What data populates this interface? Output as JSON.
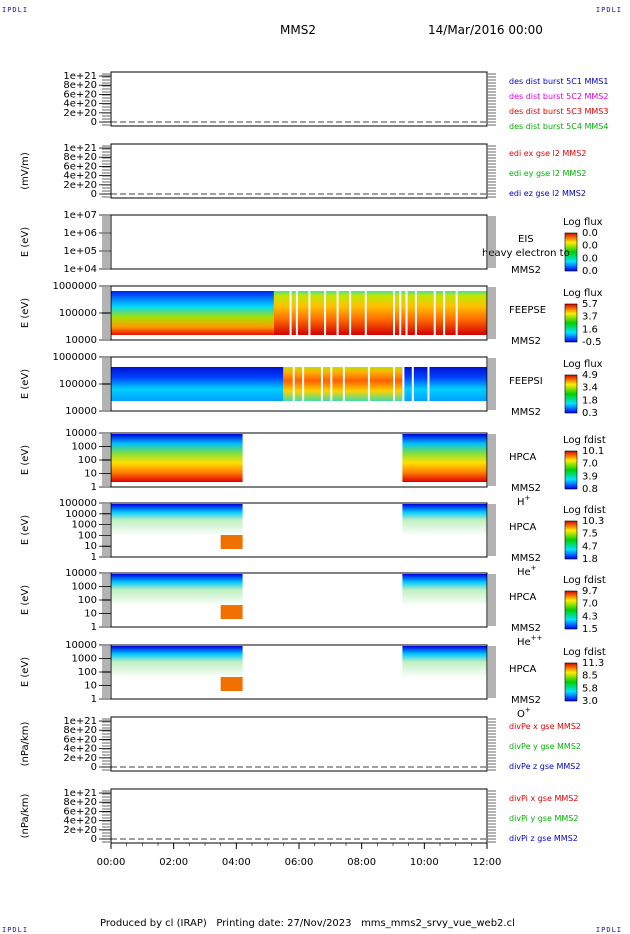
{
  "corners": {
    "tl": "IPDLI",
    "tr": "IPDLI",
    "bl": "IPDLI",
    "br": "IPDLI"
  },
  "header": {
    "spacecraft": "MMS2",
    "datetime": "14/Mar/2016 00:00"
  },
  "footer": {
    "produced_by": "Produced by cl (IRAP)",
    "printing_date": "Printing date: 27/Nov/2023",
    "filename": "mms_mms2_srvy_vue_web2.cl"
  },
  "colors": {
    "red": "#e00000",
    "magenta": "#e000e0",
    "green": "#00b000",
    "blue": "#0000c0",
    "axis": "#000000"
  },
  "chart_data": [
    {
      "type": "line",
      "panel": "des_dist",
      "ylabel": "",
      "yticks": [
        "1e+21",
        "8e+20",
        "6e+20",
        "4e+20",
        "2e+20",
        "0"
      ],
      "series": [
        {
          "name": "des dist burst 5C1 MMS1",
          "color": "blue"
        },
        {
          "name": "des dist burst 5C2 MMS2",
          "color": "magenta"
        },
        {
          "name": "des dist burst 5C3 MMS3",
          "color": "red"
        },
        {
          "name": "des dist burst 5C4 MMS4",
          "color": "green"
        }
      ]
    },
    {
      "type": "line",
      "panel": "edi",
      "ylabel": "(mV/m)",
      "yticks": [
        "1e+21",
        "8e+20",
        "6e+20",
        "4e+20",
        "2e+20",
        "0"
      ],
      "series": [
        {
          "name": "edi ex gse l2 MMS2",
          "color": "red"
        },
        {
          "name": "edi ey gse l2 MMS2",
          "color": "green"
        },
        {
          "name": "edi ez gse l2 MMS2",
          "color": "blue"
        }
      ]
    },
    {
      "type": "heatmap",
      "panel": "eis",
      "ylabel": "E (eV)",
      "yticks": [
        "1e+07",
        "1e+06",
        "1e+05",
        "1e+04"
      ],
      "instrument": "EIS",
      "spacecraft": "MMS2",
      "overlay": "heavy electron to",
      "cb_title": "Log flux",
      "cb_ticks": [
        "0.0",
        "0.0",
        "0.0",
        "0.0"
      ]
    },
    {
      "type": "heatmap",
      "panel": "feepse",
      "ylabel": "E (eV)",
      "yticks": [
        "1000000",
        "100000",
        "10000"
      ],
      "instrument": "FEEPSE",
      "spacecraft": "MMS2",
      "cb_title": "Log flux",
      "cb_ticks": [
        "5.7",
        "3.7",
        "1.6",
        "-0.5"
      ]
    },
    {
      "type": "heatmap",
      "panel": "feepsi",
      "ylabel": "E (eV)",
      "yticks": [
        "1000000",
        "100000",
        "10000"
      ],
      "instrument": "FEEPSI",
      "spacecraft": "MMS2",
      "cb_title": "Log flux",
      "cb_ticks": [
        "4.9",
        "3.4",
        "1.8",
        "0.3"
      ]
    },
    {
      "type": "heatmap",
      "panel": "hpca_h",
      "ylabel": "E (eV)",
      "yticks": [
        "10000",
        "1000",
        "100",
        "10",
        "1"
      ],
      "instrument": "HPCA",
      "spacecraft": "MMS2",
      "species": "H",
      "charge": "+",
      "cb_title": "Log fdist",
      "cb_ticks": [
        "10.1",
        "7.0",
        "3.9",
        "0.8"
      ]
    },
    {
      "type": "heatmap",
      "panel": "hpca_he",
      "ylabel": "E (eV)",
      "yticks": [
        "100000",
        "10000",
        "1000",
        "100",
        "10",
        "1"
      ],
      "instrument": "HPCA",
      "spacecraft": "MMS2",
      "species": "He",
      "charge": "+",
      "cb_title": "Log fdist",
      "cb_ticks": [
        "10.3",
        "7.5",
        "4.7",
        "1.8"
      ]
    },
    {
      "type": "heatmap",
      "panel": "hpca_he2",
      "ylabel": "E (eV)",
      "yticks": [
        "10000",
        "1000",
        "100",
        "10",
        "1"
      ],
      "instrument": "HPCA",
      "spacecraft": "MMS2",
      "species": "He",
      "charge": "++",
      "cb_title": "Log fdist",
      "cb_ticks": [
        "9.7",
        "7.0",
        "4.3",
        "1.5"
      ]
    },
    {
      "type": "heatmap",
      "panel": "hpca_o",
      "ylabel": "E (eV)",
      "yticks": [
        "10000",
        "1000",
        "100",
        "10",
        "1"
      ],
      "instrument": "HPCA",
      "spacecraft": "MMS2",
      "species": "O",
      "charge": "+",
      "cb_title": "Log fdist",
      "cb_ticks": [
        "11.3",
        "8.5",
        "5.8",
        "3.0"
      ]
    },
    {
      "type": "line",
      "panel": "divpe",
      "ylabel": "(nPa/km)",
      "yticks": [
        "1e+21",
        "8e+20",
        "6e+20",
        "4e+20",
        "2e+20",
        "0"
      ],
      "series": [
        {
          "name": "divPe x gse MMS2",
          "color": "red"
        },
        {
          "name": "divPe y gse MMS2",
          "color": "green"
        },
        {
          "name": "divPe z gse MMS2",
          "color": "blue"
        }
      ]
    },
    {
      "type": "line",
      "panel": "divpi",
      "ylabel": "(nPa/km)",
      "yticks": [
        "1e+21",
        "8e+20",
        "6e+20",
        "4e+20",
        "2e+20",
        "0"
      ],
      "series": [
        {
          "name": "divPi x gse MMS2",
          "color": "red"
        },
        {
          "name": "divPi y gse MMS2",
          "color": "green"
        },
        {
          "name": "divPi z gse MMS2",
          "color": "blue"
        }
      ]
    }
  ],
  "xaxis": {
    "ticks": [
      "00:00",
      "02:00",
      "04:00",
      "06:00",
      "08:00",
      "10:00",
      "12:00"
    ]
  }
}
